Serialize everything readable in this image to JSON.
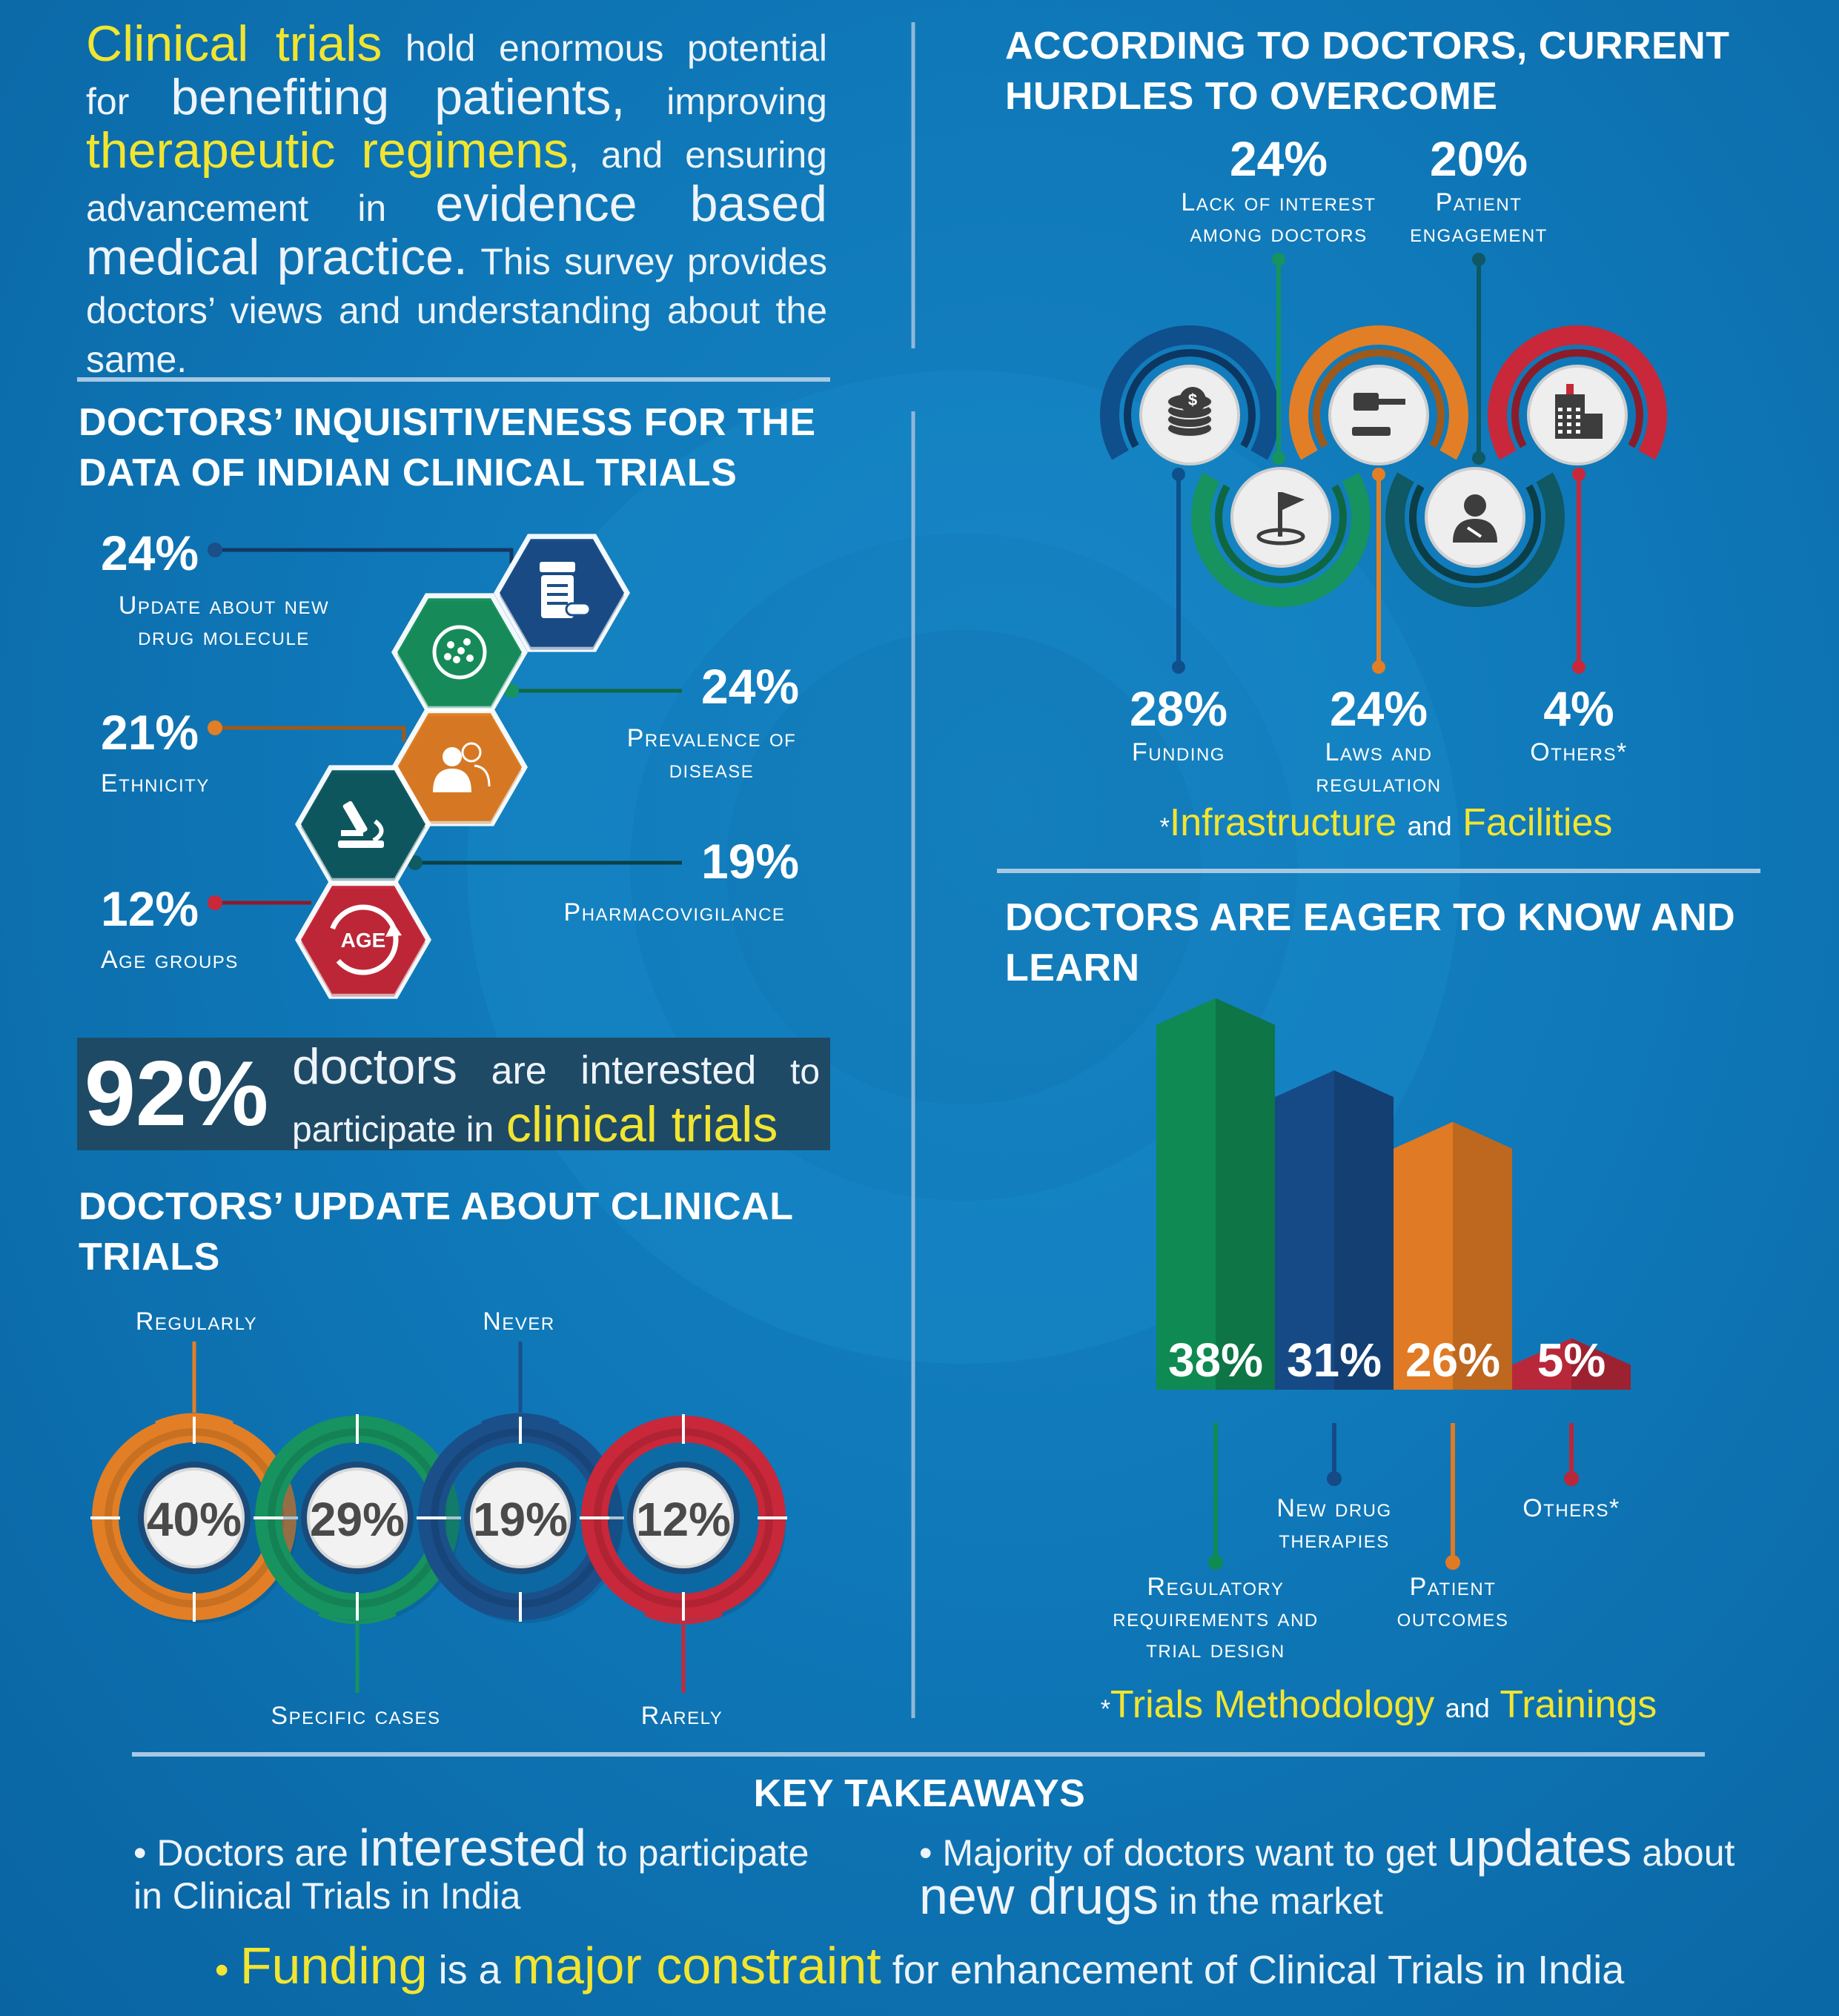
{
  "intro": {
    "w1": "Clinical trials",
    "w2": "hold enormous potential for",
    "w3": "benefiting patients,",
    "w4": "improving",
    "w5": "therapeutic regimens",
    "w6": ", and ensuring advancement in",
    "w7": "evidence based medical practice.",
    "w8": "This survey provides doctors’ views and understanding about the same."
  },
  "hurdles": {
    "title": "ACCORDING TO DOCTORS, CURRENT HURDLES TO OVERCOME",
    "items": [
      {
        "pct": "24%",
        "label": "Lack of interest among doctors",
        "icon": "flag-icon",
        "color": "#16935e"
      },
      {
        "pct": "20%",
        "label": "Patient engagement",
        "icon": "patient-icon",
        "color": "#0f5864"
      },
      {
        "pct": "28%",
        "label": "Funding",
        "icon": "coins-icon",
        "color": "#0f4f8c"
      },
      {
        "pct": "24%",
        "label": "Laws and regulation",
        "icon": "gavel-icon",
        "color": "#e27f26"
      },
      {
        "pct": "4%",
        "label": "Others*",
        "icon": "hospital-icon",
        "color": "#c8283a"
      }
    ],
    "footnote_star": "*",
    "footnote_a": "Infrastructure",
    "footnote_and": "and",
    "footnote_b": "Facilities"
  },
  "inquisitiveness": {
    "title": "DOCTORS’ INQUISITIVENESS FOR THE DATA OF INDIAN CLINICAL TRIALS",
    "items": [
      {
        "pct": "24%",
        "label": "Update about new drug molecule",
        "icon": "medicine-icon",
        "color": "#1b4f8a"
      },
      {
        "pct": "24%",
        "label": "Prevalence of disease",
        "icon": "bacteria-icon",
        "color": "#17935f"
      },
      {
        "pct": "21%",
        "label": "Ethnicity",
        "icon": "people-icon",
        "color": "#e27f26"
      },
      {
        "pct": "19%",
        "label": "Pharmacovigilance",
        "icon": "microscope-icon",
        "color": "#0f5b63"
      },
      {
        "pct": "12%",
        "label": "Age groups",
        "icon": "age-icon",
        "color": "#c8283a"
      }
    ],
    "age_text": "AGE"
  },
  "interested": {
    "pct": "92%",
    "t1": "doctors",
    "t2": "are",
    "t3": "interested",
    "t4": "to participate in",
    "t5": "clinical trials"
  },
  "update": {
    "title": "DOCTORS’ UPDATE ABOUT CLINICAL TRIALS",
    "items": [
      {
        "pct": "40%",
        "label": "Regularly",
        "color": "#e27f26"
      },
      {
        "pct": "29%",
        "label": "Specific cases",
        "color": "#17935f"
      },
      {
        "pct": "19%",
        "label": "Never",
        "color": "#1b4f8a"
      },
      {
        "pct": "12%",
        "label": "Rarely",
        "color": "#c8283a"
      }
    ]
  },
  "eager": {
    "title": "DOCTORS ARE EAGER TO KNOW AND LEARN",
    "items": [
      {
        "pct": "38%",
        "value": 38,
        "label": "Regulatory requirements and trial design",
        "color": "#0f8a52"
      },
      {
        "pct": "31%",
        "value": 31,
        "label": "New drug therapies",
        "color": "#164a86"
      },
      {
        "pct": "26%",
        "value": 26,
        "label": "Patient outcomes",
        "color": "#e07a24"
      },
      {
        "pct": "5%",
        "value": 5,
        "label": "Others*",
        "color": "#b8283a"
      }
    ],
    "footnote_star": "*",
    "footnote_a": "Trials Methodology",
    "footnote_and": "and",
    "footnote_b": "Trainings"
  },
  "takeaways": {
    "title": "KEY TAKEAWAYS",
    "b1a": "Doctors are",
    "b1b": "interested",
    "b1c": "to participate in Clinical Trials in India",
    "b2a": "Majority of doctors want to get",
    "b2b": "updates",
    "b2c": "about",
    "b2d": "new drugs",
    "b2e": "in the market",
    "b3a": "Funding",
    "b3b": "is a",
    "b3c": "major constraint",
    "b3d": "for enhancement of Clinical Trials in India",
    "bullet": "•"
  }
}
